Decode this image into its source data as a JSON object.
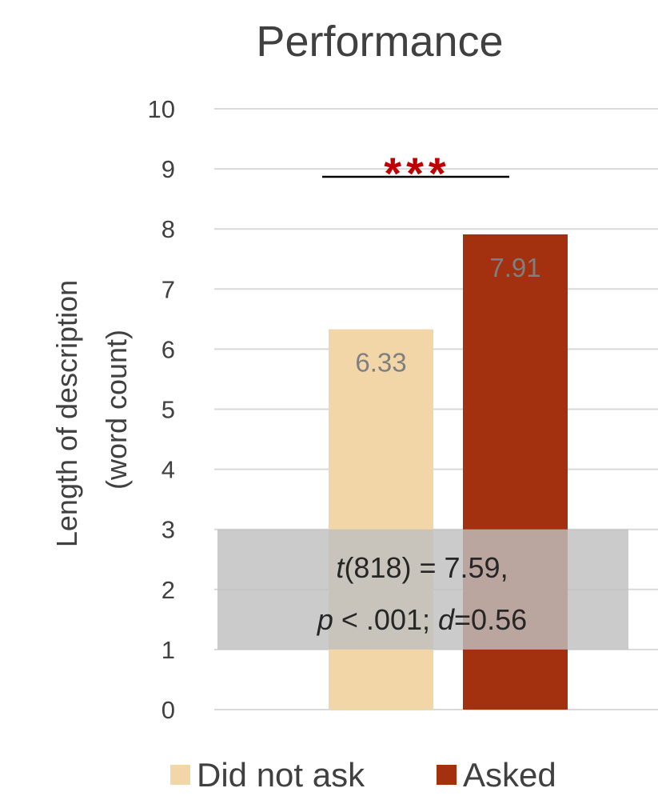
{
  "chart_data": {
    "type": "bar",
    "title": "Performance",
    "ylabel": [
      "Length of description",
      "(word count)"
    ],
    "xlabel": "",
    "ylim": [
      0,
      10
    ],
    "yticks": [
      "0",
      "1",
      "2",
      "3",
      "4",
      "5",
      "6",
      "7",
      "8",
      "9",
      "10"
    ],
    "series": [
      {
        "name": "Did not ask",
        "values": [
          6.33
        ],
        "label": "6.33",
        "color": "#f2d6a8"
      },
      {
        "name": "Asked",
        "values": [
          7.91
        ],
        "label": "7.91",
        "color": "#a3300e"
      }
    ],
    "grid": true,
    "legend": "bottom",
    "annotations": {
      "significance": "***",
      "significance_color": "#c00000",
      "stat_box_range": [
        1,
        3
      ],
      "stat_box_color": "#bfbfbf",
      "stat_line1": {
        "t": "t",
        "rest": "(818) = 7.59,"
      },
      "stat_line2": {
        "p": "p",
        "mid": " < .001; ",
        "d": "d",
        "rest": "=0.56"
      }
    }
  }
}
